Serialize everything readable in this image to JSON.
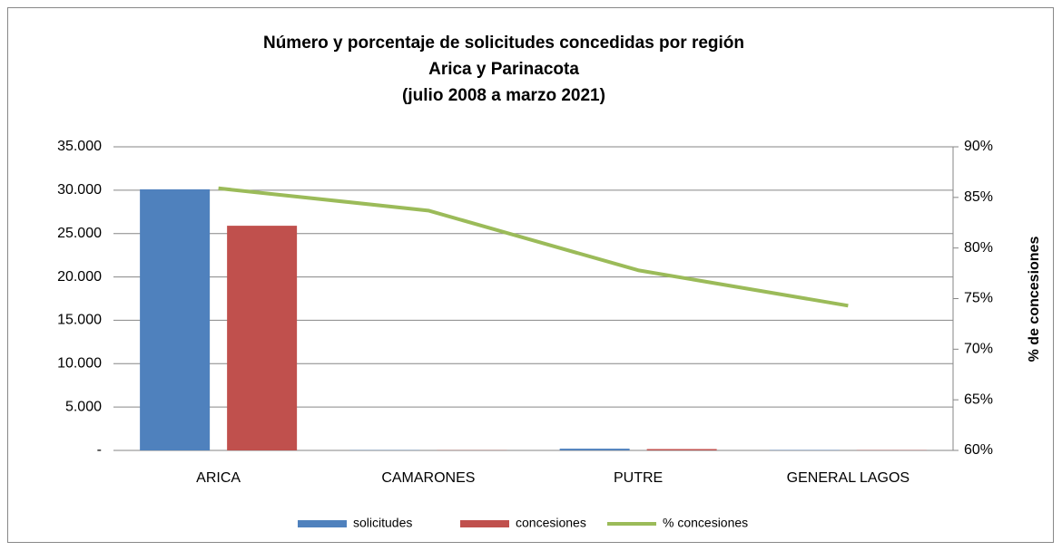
{
  "chart_data": {
    "type": "bar",
    "title": [
      "Número y porcentaje de solicitudes concedidas por región",
      "Arica y Parinacota",
      "(julio 2008 a marzo 2021)"
    ],
    "categories": [
      "ARICA",
      "CAMARONES",
      "PUTRE",
      "GENERAL LAGOS"
    ],
    "series": [
      {
        "name": "solicitudes",
        "color": "#4f81bd",
        "values": [
          30100,
          30,
          200,
          40
        ]
      },
      {
        "name": "concesiones",
        "color": "#c0504d",
        "values": [
          25900,
          25,
          155,
          30
        ]
      },
      {
        "name": "% concesiones",
        "color": "#9bbb59",
        "type": "line",
        "axis": "y2",
        "values": [
          85.9,
          83.7,
          77.8,
          74.3
        ]
      }
    ],
    "ylim": [
      0,
      35000
    ],
    "yticks": [
      {
        "value": 0,
        "label": "-"
      },
      {
        "value": 5000,
        "label": "5.000"
      },
      {
        "value": 10000,
        "label": "10.000"
      },
      {
        "value": 15000,
        "label": "15.000"
      },
      {
        "value": 20000,
        "label": "20.000"
      },
      {
        "value": 25000,
        "label": "25.000"
      },
      {
        "value": 30000,
        "label": "30.000"
      },
      {
        "value": 35000,
        "label": "35.000"
      }
    ],
    "y2lim": [
      60,
      90
    ],
    "y2ticks": [
      {
        "value": 60,
        "label": "60%"
      },
      {
        "value": 65,
        "label": "65%"
      },
      {
        "value": 70,
        "label": "70%"
      },
      {
        "value": 75,
        "label": "75%"
      },
      {
        "value": 80,
        "label": "80%"
      },
      {
        "value": 85,
        "label": "85%"
      },
      {
        "value": 90,
        "label": "90%"
      }
    ],
    "y2label": "% de concesiones",
    "grid": true,
    "legend": "bottom"
  }
}
